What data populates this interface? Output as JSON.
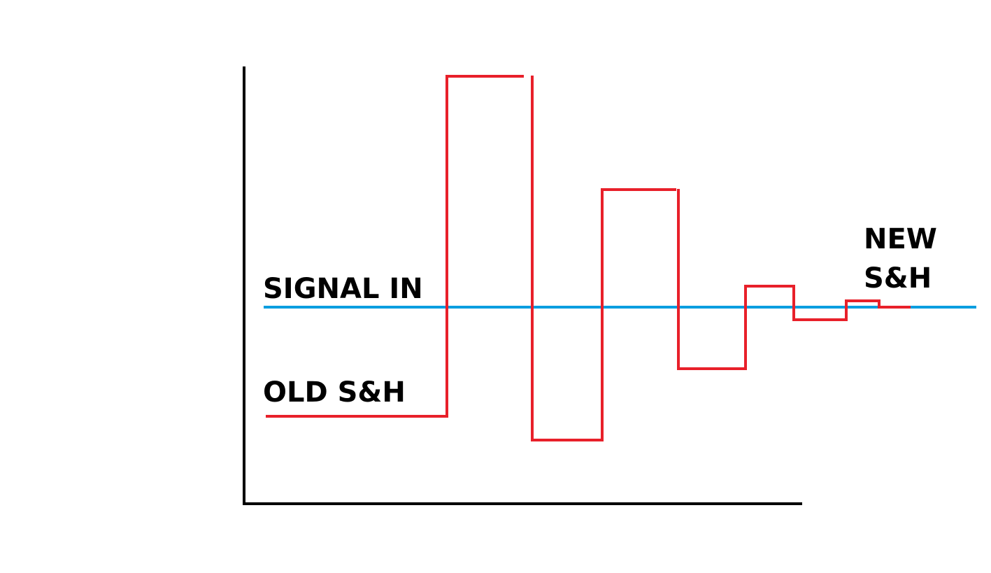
{
  "labels": {
    "signal_in": "SIGNAL IN",
    "old_sh": "OLD S&H",
    "new_sh_line1": "NEW",
    "new_sh_line2": "S&H"
  },
  "colors": {
    "axes": "#000000",
    "signal": "#0a9ee0",
    "sample_hold": "#e8202a",
    "background": "#ffffff"
  }
}
